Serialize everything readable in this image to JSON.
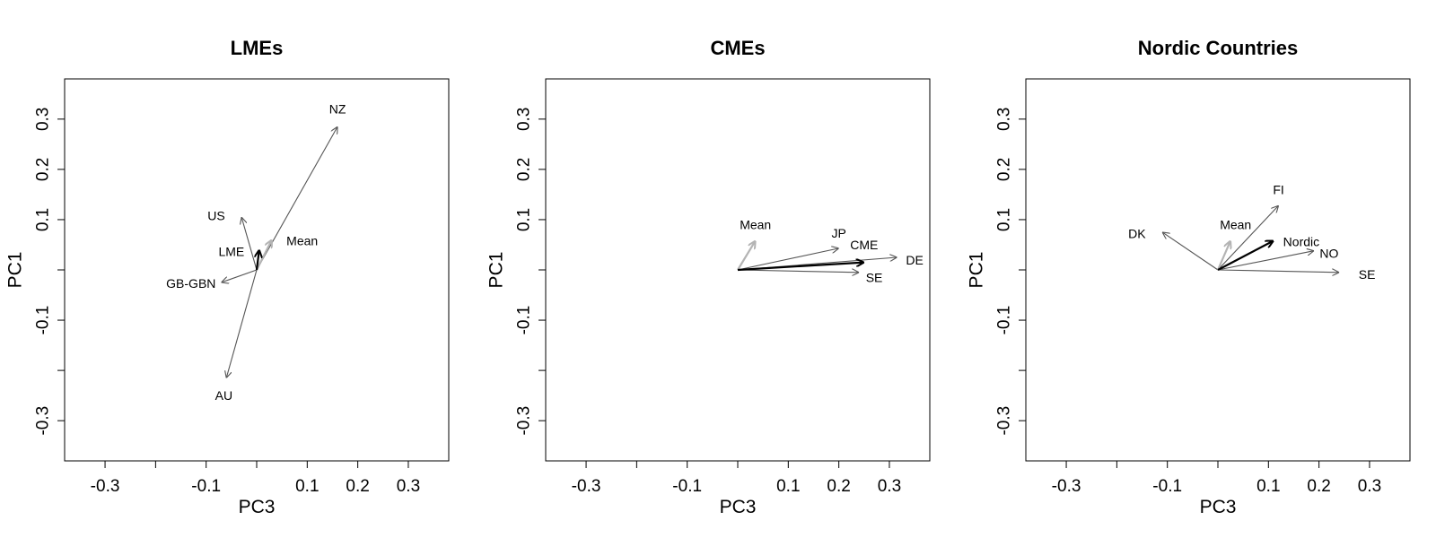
{
  "chart_data": [
    {
      "type": "scatter",
      "title": "LMEs",
      "xlabel": "PC3",
      "ylabel": "PC1",
      "xlim": [
        -0.38,
        0.38
      ],
      "ylim": [
        -0.38,
        0.38
      ],
      "x_ticks": [
        -0.3,
        -0.2,
        -0.1,
        0,
        0.1,
        0.2,
        0.3
      ],
      "x_tick_labels": [
        "-0.3",
        "",
        "-0.1",
        "",
        "0.1",
        "0.2",
        "0.3"
      ],
      "y_ticks": [
        -0.3,
        -0.2,
        -0.1,
        0,
        0.1,
        0.2,
        0.3
      ],
      "y_tick_labels": [
        "-0.3",
        "",
        "-0.1",
        "",
        "0.1",
        "0.2",
        "0.3"
      ],
      "grid": false,
      "origin": [
        0,
        0
      ],
      "vectors": [
        {
          "label": "NZ",
          "x": 0.16,
          "y": 0.285,
          "style": "country",
          "label_dx": 0,
          "label_dy": 0.035
        },
        {
          "label": "US",
          "x": -0.03,
          "y": 0.105,
          "style": "country",
          "label_dx": -0.05,
          "label_dy": 0.003
        },
        {
          "label": "GB-GBN",
          "x": -0.07,
          "y": -0.025,
          "style": "country",
          "label_dx": -0.06,
          "label_dy": -0.002
        },
        {
          "label": "AU",
          "x": -0.06,
          "y": -0.215,
          "style": "country",
          "label_dx": -0.005,
          "label_dy": -0.035
        },
        {
          "label": "Mean",
          "x": 0.03,
          "y": 0.06,
          "style": "mean",
          "label_dx": 0.06,
          "label_dy": -0.002
        },
        {
          "label": "LME",
          "x": 0.005,
          "y": 0.04,
          "style": "group",
          "label_dx": -0.055,
          "label_dy": -0.003
        }
      ]
    },
    {
      "type": "scatter",
      "title": "CMEs",
      "xlabel": "PC3",
      "ylabel": "PC1",
      "xlim": [
        -0.38,
        0.38
      ],
      "ylim": [
        -0.38,
        0.38
      ],
      "x_ticks": [
        -0.3,
        -0.2,
        -0.1,
        0,
        0.1,
        0.2,
        0.3
      ],
      "x_tick_labels": [
        "-0.3",
        "",
        "-0.1",
        "",
        "0.1",
        "0.2",
        "0.3"
      ],
      "y_ticks": [
        -0.3,
        -0.2,
        -0.1,
        0,
        0.1,
        0.2,
        0.3
      ],
      "y_tick_labels": [
        "-0.3",
        "",
        "-0.1",
        "",
        "0.1",
        "0.2",
        "0.3"
      ],
      "grid": false,
      "origin": [
        0,
        0
      ],
      "vectors": [
        {
          "label": "JP",
          "x": 0.2,
          "y": 0.043,
          "style": "country",
          "label_dx": 0,
          "label_dy": 0.03
        },
        {
          "label": "DE",
          "x": 0.315,
          "y": 0.025,
          "style": "country",
          "label_dx": 0.035,
          "label_dy": -0.005
        },
        {
          "label": "SE",
          "x": 0.24,
          "y": -0.005,
          "style": "country",
          "label_dx": 0.03,
          "label_dy": -0.01
        },
        {
          "label": "Mean",
          "x": 0.035,
          "y": 0.058,
          "style": "mean",
          "label_dx": 0,
          "label_dy": 0.032
        },
        {
          "label": "CME",
          "x": 0.25,
          "y": 0.015,
          "style": "group",
          "label_dx": 0.0,
          "label_dy": 0.035
        }
      ]
    },
    {
      "type": "scatter",
      "title": "Nordic Countries",
      "xlabel": "PC3",
      "ylabel": "PC1",
      "xlim": [
        -0.38,
        0.38
      ],
      "ylim": [
        -0.38,
        0.38
      ],
      "x_ticks": [
        -0.3,
        -0.2,
        -0.1,
        0,
        0.1,
        0.2,
        0.3
      ],
      "x_tick_labels": [
        "-0.3",
        "",
        "-0.1",
        "",
        "0.1",
        "0.2",
        "0.3"
      ],
      "y_ticks": [
        -0.3,
        -0.2,
        -0.1,
        0,
        0.1,
        0.2,
        0.3
      ],
      "y_tick_labels": [
        "-0.3",
        "",
        "-0.1",
        "",
        "0.1",
        "0.2",
        "0.3"
      ],
      "grid": false,
      "origin": [
        0,
        0
      ],
      "vectors": [
        {
          "label": "FI",
          "x": 0.12,
          "y": 0.128,
          "style": "country",
          "label_dx": 0.0,
          "label_dy": 0.032
        },
        {
          "label": "DK",
          "x": -0.11,
          "y": 0.075,
          "style": "country",
          "label_dx": -0.05,
          "label_dy": -0.003
        },
        {
          "label": "NO",
          "x": 0.19,
          "y": 0.038,
          "style": "country",
          "label_dx": 0.03,
          "label_dy": -0.005
        },
        {
          "label": "SE",
          "x": 0.24,
          "y": -0.005,
          "style": "country",
          "label_dx": 0.055,
          "label_dy": -0.004
        },
        {
          "label": "Mean",
          "x": 0.025,
          "y": 0.058,
          "style": "mean",
          "label_dx": 0.01,
          "label_dy": 0.032
        },
        {
          "label": "Nordic",
          "x": 0.11,
          "y": 0.058,
          "style": "group",
          "label_dx": 0.055,
          "label_dy": -0.002
        }
      ]
    }
  ],
  "styles": {
    "country_color": "#555555",
    "mean_color": "#b4b4b4",
    "group_color": "#000000"
  }
}
